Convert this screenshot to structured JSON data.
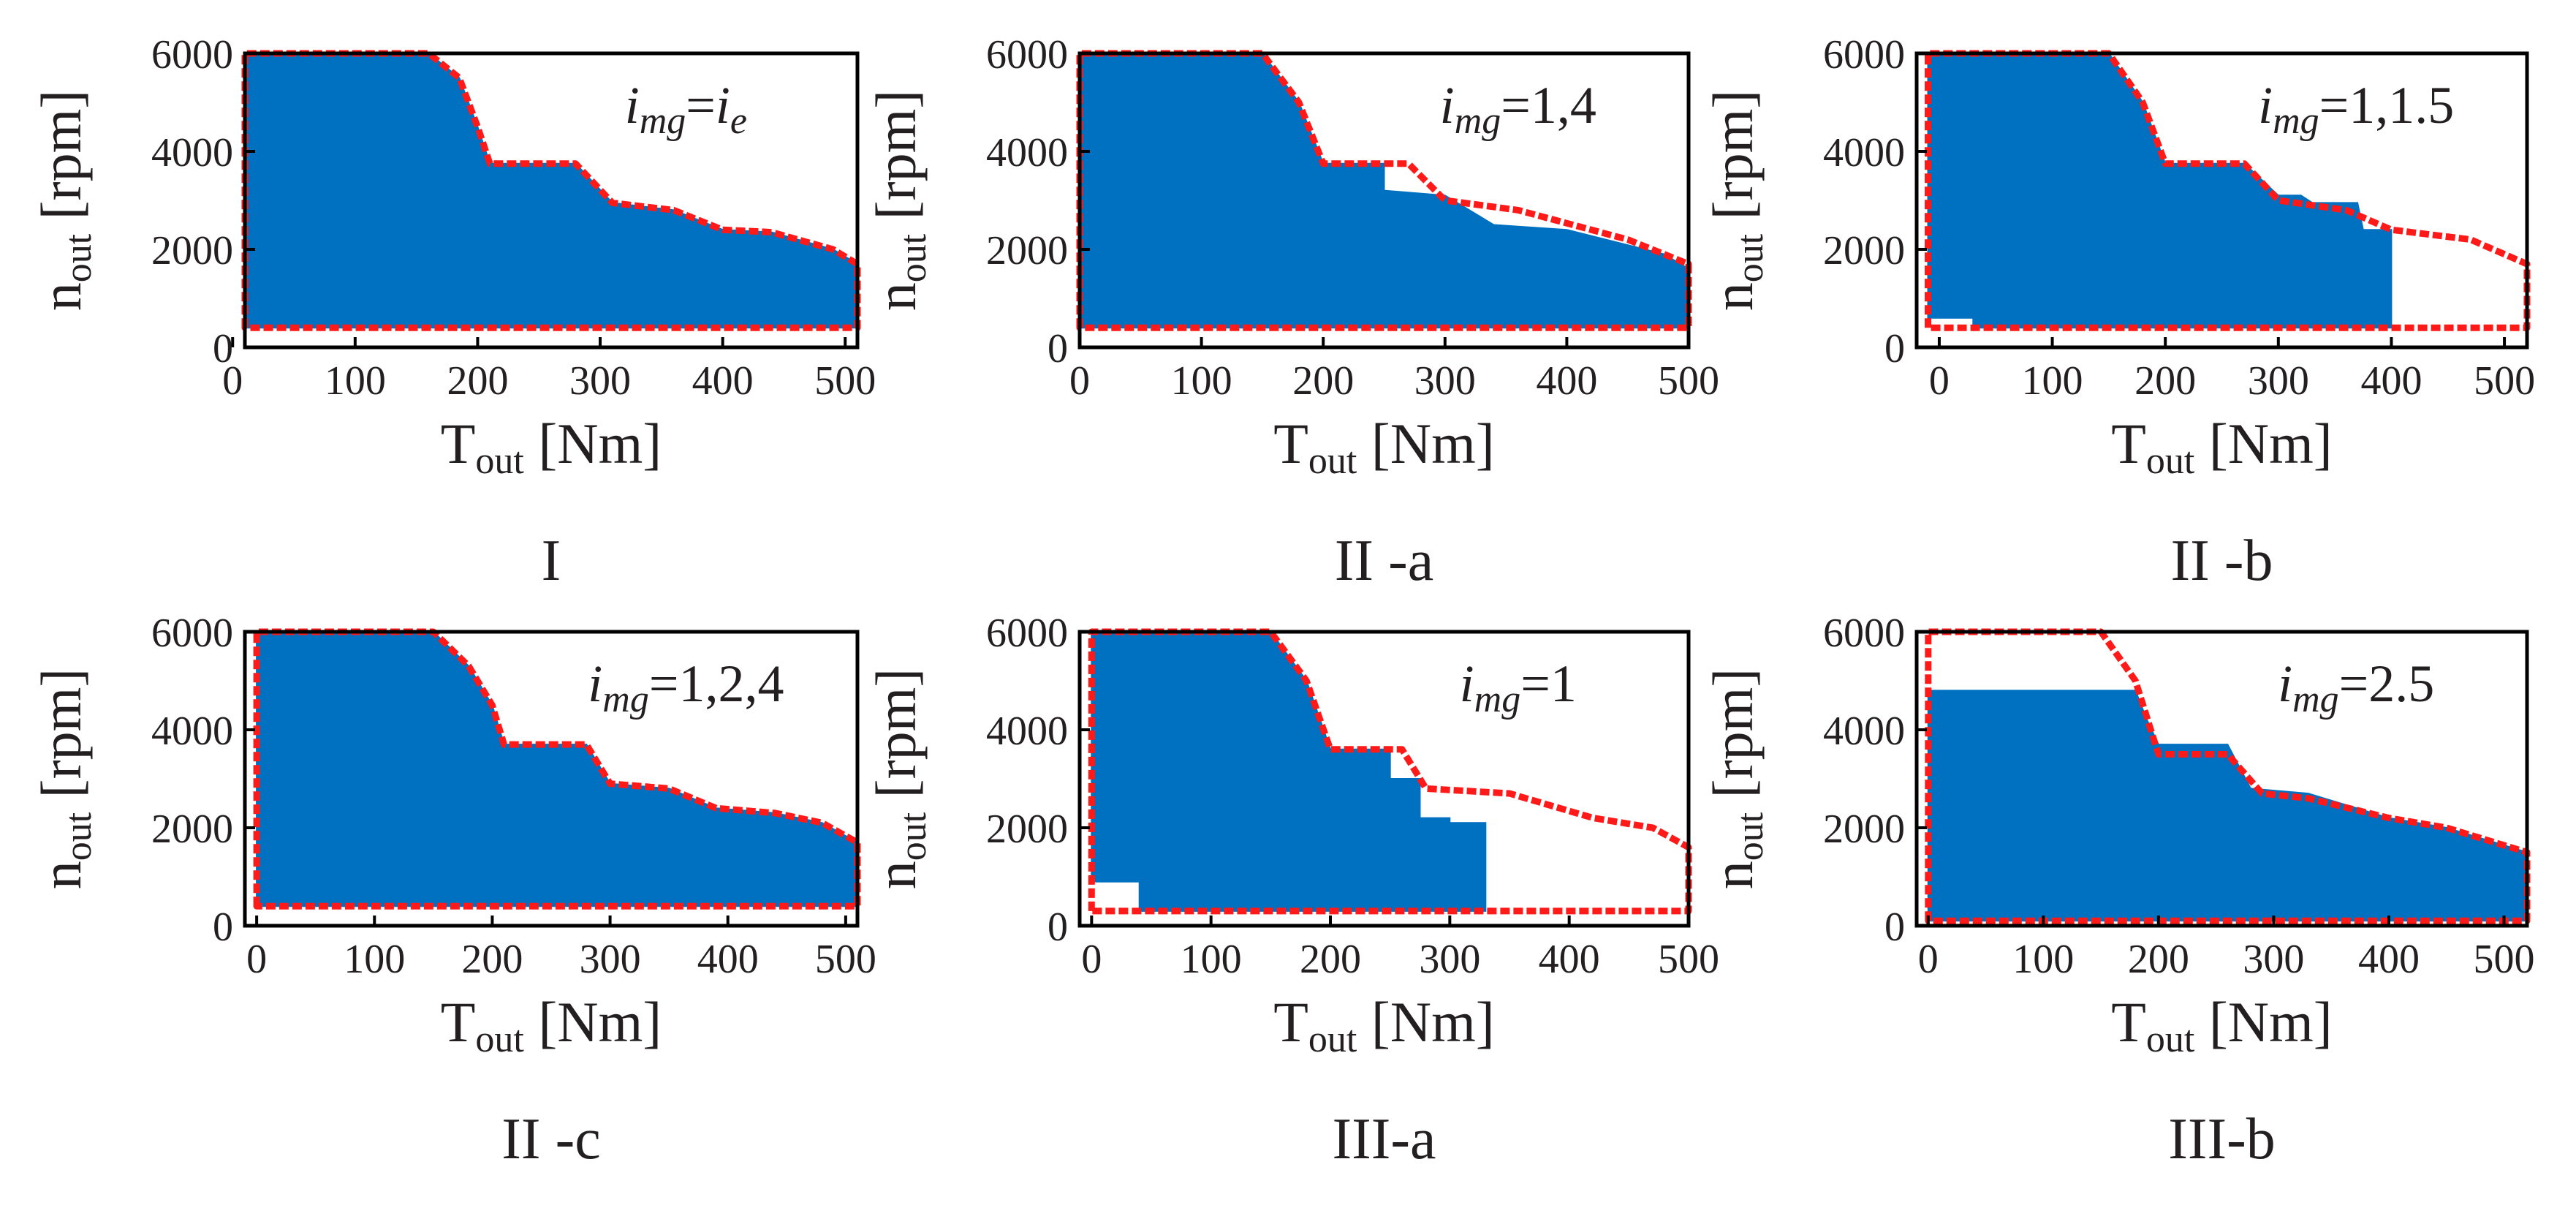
{
  "figure": {
    "colors": {
      "operating_region": "#0070c0",
      "envelope": "#ff1a1a",
      "axes": "#000000",
      "text": "#231f20"
    },
    "x_axis_label": {
      "main": "T",
      "sub": "out",
      "unit": "[Nm]"
    },
    "y_axis_label": {
      "main": "n",
      "sub": "out",
      "unit": "[rpm]"
    }
  },
  "chart_data": [
    {
      "id": "p1",
      "type": "area",
      "caption": "I",
      "annotation": {
        "var": "i",
        "sub": "mg",
        "eq": "=",
        "value": "i",
        "value_sub": "e"
      },
      "xlim": [
        10,
        510
      ],
      "ylim": [
        0,
        6000
      ],
      "xticks": [
        0,
        100,
        200,
        300,
        400,
        500
      ],
      "xtick_labels": [
        "0",
        "100",
        "200",
        "300",
        "400",
        "500"
      ],
      "yticks": [
        0,
        2000,
        4000,
        6000
      ],
      "ytick_labels": [
        "0",
        "2000",
        "4000",
        "6000"
      ],
      "envelope": [
        [
          10,
          400
        ],
        [
          10,
          6000
        ],
        [
          160,
          6000
        ],
        [
          185,
          5500
        ],
        [
          200,
          4500
        ],
        [
          210,
          3750
        ],
        [
          280,
          3750
        ],
        [
          310,
          2950
        ],
        [
          360,
          2800
        ],
        [
          400,
          2400
        ],
        [
          440,
          2350
        ],
        [
          490,
          2000
        ],
        [
          510,
          1700
        ],
        [
          510,
          400
        ],
        [
          10,
          400
        ]
      ],
      "filled": [
        [
          10,
          400
        ],
        [
          10,
          6000
        ],
        [
          160,
          6000
        ],
        [
          185,
          5500
        ],
        [
          200,
          4500
        ],
        [
          210,
          3750
        ],
        [
          280,
          3750
        ],
        [
          310,
          2950
        ],
        [
          360,
          2800
        ],
        [
          400,
          2400
        ],
        [
          440,
          2350
        ],
        [
          490,
          2000
        ],
        [
          510,
          1700
        ],
        [
          510,
          400
        ],
        [
          10,
          400
        ]
      ]
    },
    {
      "id": "p2",
      "type": "area",
      "caption": "II -a",
      "annotation": {
        "var": "i",
        "sub": "mg",
        "eq": "=",
        "value": "1,4",
        "value_sub": ""
      },
      "xlim": [
        0,
        500
      ],
      "ylim": [
        0,
        6000
      ],
      "xticks": [
        0,
        100,
        200,
        300,
        400,
        500
      ],
      "xtick_labels": [
        "0",
        "100",
        "200",
        "300",
        "400",
        "500"
      ],
      "yticks": [
        0,
        2000,
        4000,
        6000
      ],
      "ytick_labels": [
        "0",
        "2000",
        "4000",
        "6000"
      ],
      "envelope": [
        [
          0,
          400
        ],
        [
          0,
          6000
        ],
        [
          150,
          6000
        ],
        [
          180,
          5000
        ],
        [
          200,
          3750
        ],
        [
          270,
          3750
        ],
        [
          300,
          3000
        ],
        [
          360,
          2800
        ],
        [
          450,
          2200
        ],
        [
          500,
          1700
        ],
        [
          500,
          400
        ],
        [
          0,
          400
        ]
      ],
      "filled": [
        [
          0,
          400
        ],
        [
          0,
          6000
        ],
        [
          150,
          6000
        ],
        [
          180,
          5000
        ],
        [
          200,
          3750
        ],
        [
          250,
          3750
        ],
        [
          250,
          3200
        ],
        [
          300,
          3100
        ],
        [
          340,
          2500
        ],
        [
          400,
          2400
        ],
        [
          480,
          1900
        ],
        [
          500,
          1600
        ],
        [
          500,
          400
        ],
        [
          0,
          400
        ]
      ]
    },
    {
      "id": "p3",
      "type": "area",
      "caption": "II -b",
      "annotation": {
        "var": "i",
        "sub": "mg",
        "eq": "=",
        "value": "1,1.5",
        "value_sub": ""
      },
      "xlim": [
        -20,
        520
      ],
      "ylim": [
        0,
        6000
      ],
      "xticks": [
        0,
        100,
        200,
        300,
        400,
        500
      ],
      "xtick_labels": [
        "0",
        "100",
        "200",
        "300",
        "400",
        "500"
      ],
      "yticks": [
        0,
        2000,
        4000,
        6000
      ],
      "ytick_labels": [
        "0",
        "2000",
        "4000",
        "6000"
      ],
      "envelope": [
        [
          -10,
          400
        ],
        [
          -10,
          6000
        ],
        [
          150,
          6000
        ],
        [
          180,
          5000
        ],
        [
          200,
          3750
        ],
        [
          270,
          3750
        ],
        [
          300,
          3000
        ],
        [
          360,
          2800
        ],
        [
          400,
          2400
        ],
        [
          470,
          2200
        ],
        [
          520,
          1700
        ],
        [
          520,
          400
        ],
        [
          -10,
          400
        ]
      ],
      "filled": [
        [
          -10,
          600
        ],
        [
          -10,
          6000
        ],
        [
          150,
          6000
        ],
        [
          180,
          5000
        ],
        [
          200,
          3750
        ],
        [
          270,
          3750
        ],
        [
          300,
          3100
        ],
        [
          320,
          3100
        ],
        [
          330,
          2950
        ],
        [
          370,
          2950
        ],
        [
          375,
          2400
        ],
        [
          400,
          2400
        ],
        [
          400,
          400
        ],
        [
          30,
          400
        ],
        [
          30,
          600
        ],
        [
          -10,
          600
        ]
      ]
    },
    {
      "id": "p4",
      "type": "area",
      "caption": "II -c",
      "annotation": {
        "var": "i",
        "sub": "mg",
        "eq": "=",
        "value": "1,2,4",
        "value_sub": ""
      },
      "xlim": [
        -10,
        510
      ],
      "ylim": [
        0,
        6000
      ],
      "xticks": [
        0,
        100,
        200,
        300,
        400,
        500
      ],
      "xtick_labels": [
        "0",
        "100",
        "200",
        "300",
        "400",
        "500"
      ],
      "yticks": [
        0,
        2000,
        4000,
        6000
      ],
      "ytick_labels": [
        "0",
        "2000",
        "4000",
        "6000"
      ],
      "envelope": [
        [
          0,
          400
        ],
        [
          0,
          6000
        ],
        [
          150,
          6000
        ],
        [
          180,
          5300
        ],
        [
          200,
          4500
        ],
        [
          210,
          3700
        ],
        [
          280,
          3700
        ],
        [
          300,
          2900
        ],
        [
          350,
          2800
        ],
        [
          390,
          2400
        ],
        [
          440,
          2300
        ],
        [
          480,
          2100
        ],
        [
          510,
          1700
        ],
        [
          510,
          400
        ],
        [
          0,
          400
        ]
      ],
      "filled": [
        [
          0,
          400
        ],
        [
          0,
          6000
        ],
        [
          150,
          6000
        ],
        [
          180,
          5300
        ],
        [
          200,
          4500
        ],
        [
          210,
          3700
        ],
        [
          280,
          3700
        ],
        [
          300,
          2900
        ],
        [
          350,
          2800
        ],
        [
          390,
          2400
        ],
        [
          440,
          2300
        ],
        [
          480,
          2100
        ],
        [
          510,
          1700
        ],
        [
          510,
          400
        ],
        [
          0,
          400
        ]
      ]
    },
    {
      "id": "p5",
      "type": "area",
      "caption": "III-a",
      "annotation": {
        "var": "i",
        "sub": "mg",
        "eq": "=",
        "value": "1",
        "value_sub": ""
      },
      "xlim": [
        -10,
        500
      ],
      "ylim": [
        0,
        6000
      ],
      "xticks": [
        0,
        100,
        200,
        300,
        400,
        500
      ],
      "xtick_labels": [
        "0",
        "100",
        "200",
        "300",
        "400",
        "500"
      ],
      "yticks": [
        0,
        2000,
        4000,
        6000
      ],
      "ytick_labels": [
        "0",
        "2000",
        "4000",
        "6000"
      ],
      "envelope": [
        [
          0,
          300
        ],
        [
          0,
          6000
        ],
        [
          150,
          6000
        ],
        [
          180,
          5000
        ],
        [
          200,
          3600
        ],
        [
          260,
          3600
        ],
        [
          280,
          2800
        ],
        [
          350,
          2700
        ],
        [
          420,
          2200
        ],
        [
          470,
          2000
        ],
        [
          500,
          1600
        ],
        [
          500,
          300
        ],
        [
          0,
          300
        ]
      ],
      "filled": [
        [
          0,
          900
        ],
        [
          0,
          6000
        ],
        [
          150,
          6000
        ],
        [
          180,
          5000
        ],
        [
          200,
          3600
        ],
        [
          250,
          3600
        ],
        [
          250,
          3000
        ],
        [
          275,
          3000
        ],
        [
          275,
          2200
        ],
        [
          300,
          2200
        ],
        [
          300,
          2100
        ],
        [
          330,
          2100
        ],
        [
          330,
          300
        ],
        [
          40,
          300
        ],
        [
          40,
          900
        ],
        [
          0,
          900
        ]
      ]
    },
    {
      "id": "p6",
      "type": "area",
      "caption": "III-b",
      "annotation": {
        "var": "i",
        "sub": "mg",
        "eq": "=",
        "value": "2.5",
        "value_sub": ""
      },
      "xlim": [
        -10,
        520
      ],
      "ylim": [
        0,
        6000
      ],
      "xticks": [
        0,
        100,
        200,
        300,
        400,
        500
      ],
      "xtick_labels": [
        "0",
        "100",
        "200",
        "300",
        "400",
        "500"
      ],
      "yticks": [
        0,
        2000,
        4000,
        6000
      ],
      "ytick_labels": [
        "0",
        "2000",
        "4000",
        "6000"
      ],
      "envelope": [
        [
          0,
          100
        ],
        [
          0,
          6000
        ],
        [
          150,
          6000
        ],
        [
          180,
          5000
        ],
        [
          200,
          3500
        ],
        [
          260,
          3500
        ],
        [
          290,
          2700
        ],
        [
          330,
          2600
        ],
        [
          400,
          2200
        ],
        [
          450,
          2000
        ],
        [
          520,
          1500
        ],
        [
          520,
          100
        ],
        [
          0,
          100
        ]
      ],
      "filled": [
        [
          0,
          100
        ],
        [
          0,
          4800
        ],
        [
          180,
          4800
        ],
        [
          190,
          4200
        ],
        [
          200,
          3700
        ],
        [
          260,
          3700
        ],
        [
          280,
          2800
        ],
        [
          330,
          2700
        ],
        [
          400,
          2200
        ],
        [
          450,
          2000
        ],
        [
          520,
          1500
        ],
        [
          520,
          100
        ],
        [
          0,
          100
        ]
      ]
    }
  ]
}
